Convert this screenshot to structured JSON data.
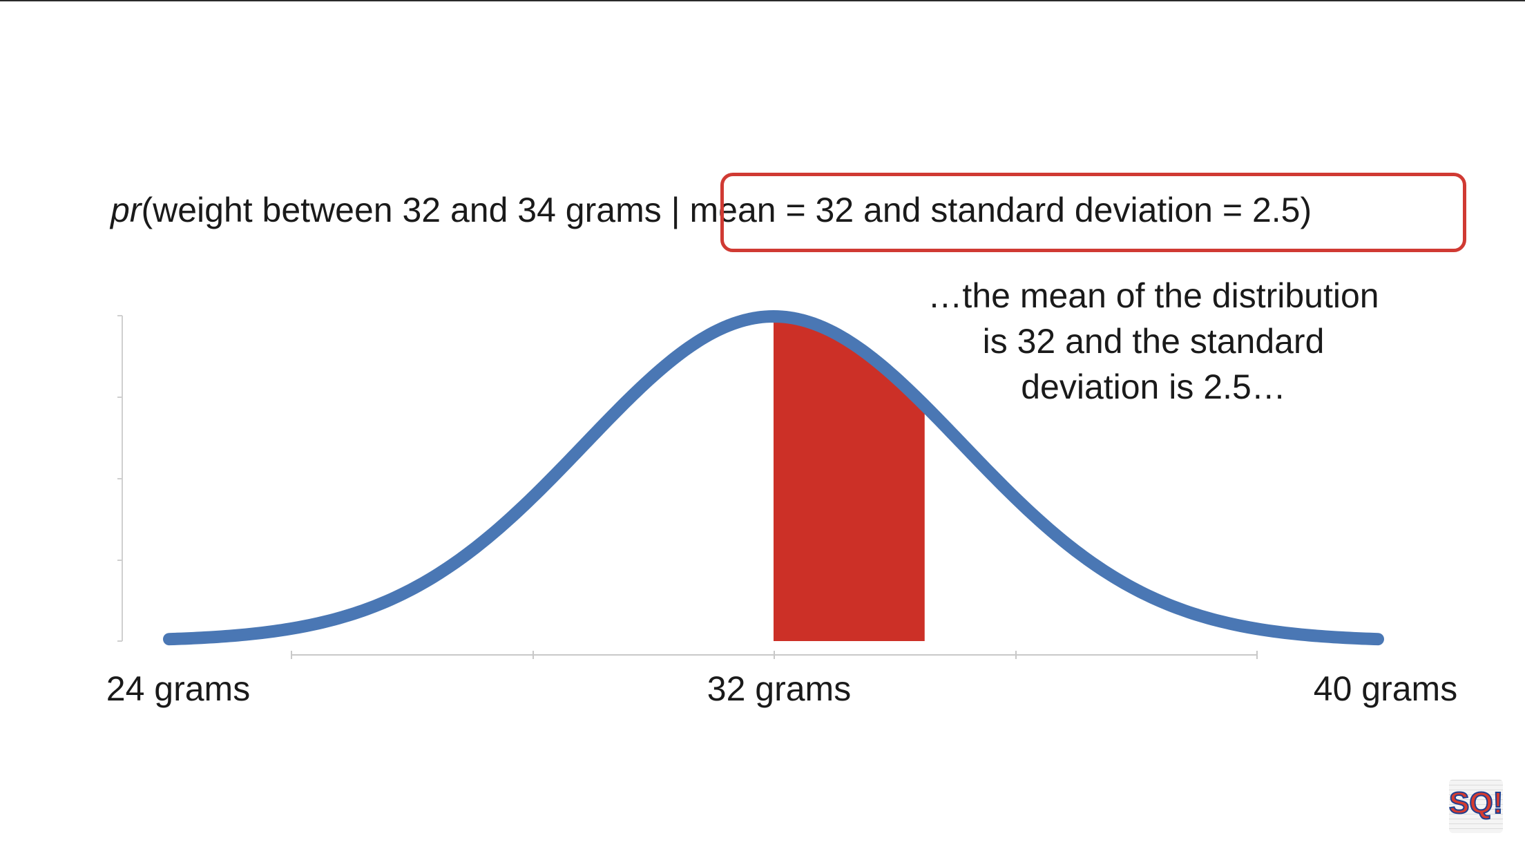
{
  "formula": {
    "prefix": "pr",
    "left_text": "(weight between 32 and 34 grams",
    "right_text": " | mean = 32 and standard deviation = 2.5)"
  },
  "annotation": "…the mean of the distribution is 32 and the standard deviation is 2.5…",
  "chart_data": {
    "type": "area",
    "distribution": "normal",
    "mean": 32,
    "standard_deviation": 2.5,
    "xlim": [
      24,
      40
    ],
    "x_ticks": [
      24,
      32,
      40
    ],
    "tick_labels": [
      "24 grams",
      "32 grams",
      "40 grams"
    ],
    "shaded_range": [
      32,
      34
    ],
    "curve_color": "#4a77b4",
    "shade_color": "#cc3027",
    "grid": false
  },
  "logo": {
    "text": "SQ!"
  }
}
